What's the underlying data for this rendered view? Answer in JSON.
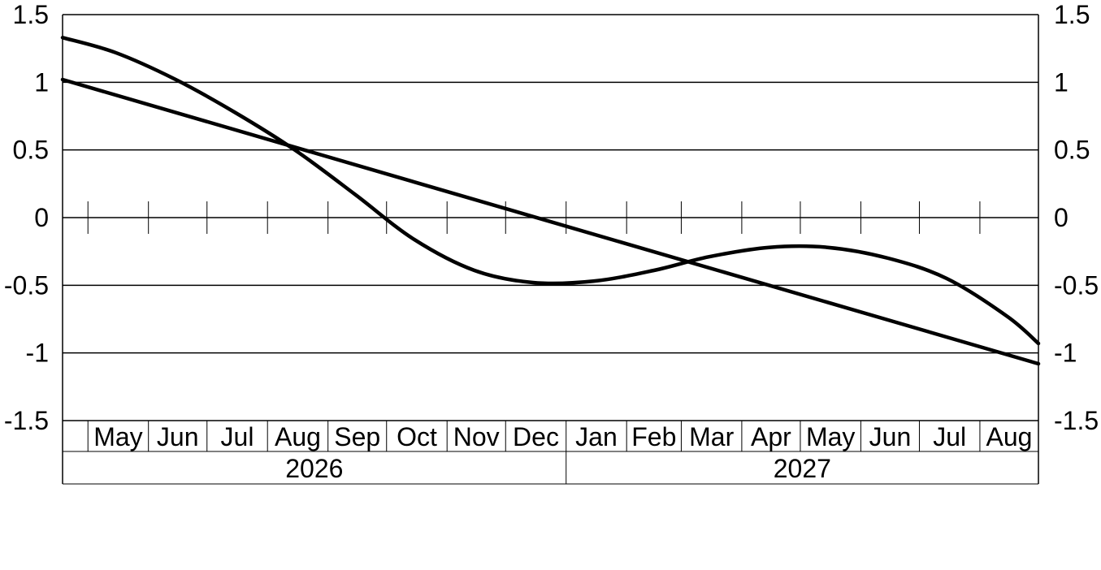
{
  "chart_data": {
    "type": "line",
    "title": "",
    "xlabel": "",
    "ylabel": "",
    "ylim": [
      -1.5,
      1.5
    ],
    "y_ticks": [
      "1.5",
      "1",
      "0.5",
      "0",
      "-0.5",
      "-1",
      "-1.5"
    ],
    "y_tick_values": [
      1.5,
      1,
      0.5,
      0,
      -0.5,
      -1,
      -1.5
    ],
    "y_axis_both_sides": true,
    "grid": true,
    "x_months": [
      "May",
      "Jun",
      "Jul",
      "Aug",
      "Sep",
      "Oct",
      "Nov",
      "Dec",
      "Jan",
      "Feb",
      "Mar",
      "Apr",
      "May",
      "Jun",
      "Jul",
      "Aug"
    ],
    "x_years": [
      {
        "label": "2026",
        "months": [
          "May",
          "Jun",
          "Jul",
          "Aug",
          "Sep",
          "Oct",
          "Nov",
          "Dec"
        ]
      },
      {
        "label": "2027",
        "months": [
          "Jan",
          "Feb",
          "Mar",
          "Apr",
          "May",
          "Jun",
          "Jul",
          "Aug"
        ]
      }
    ],
    "x_range": [
      "2026-04-18",
      "2027-08-31"
    ],
    "series": [
      {
        "x": [
          "2026-04-18",
          "2027-08-31"
        ],
        "values": [
          1.02,
          -1.08
        ],
        "color": "#000000"
      },
      {
        "x": [
          "2026-04-18",
          "2026-05-15",
          "2026-06-15",
          "2026-07-15",
          "2026-08-15",
          "2026-09-15",
          "2026-10-15",
          "2026-11-15",
          "2026-12-15",
          "2027-01-15",
          "2027-02-15",
          "2027-03-15",
          "2027-04-15",
          "2027-05-15",
          "2027-06-15",
          "2027-07-15",
          "2027-08-15",
          "2027-08-31"
        ],
        "values": [
          1.33,
          1.22,
          1.02,
          0.78,
          0.5,
          0.17,
          -0.16,
          -0.39,
          -0.48,
          -0.47,
          -0.39,
          -0.29,
          -0.22,
          -0.22,
          -0.3,
          -0.45,
          -0.73,
          -0.93
        ],
        "color": "#000000"
      }
    ]
  }
}
